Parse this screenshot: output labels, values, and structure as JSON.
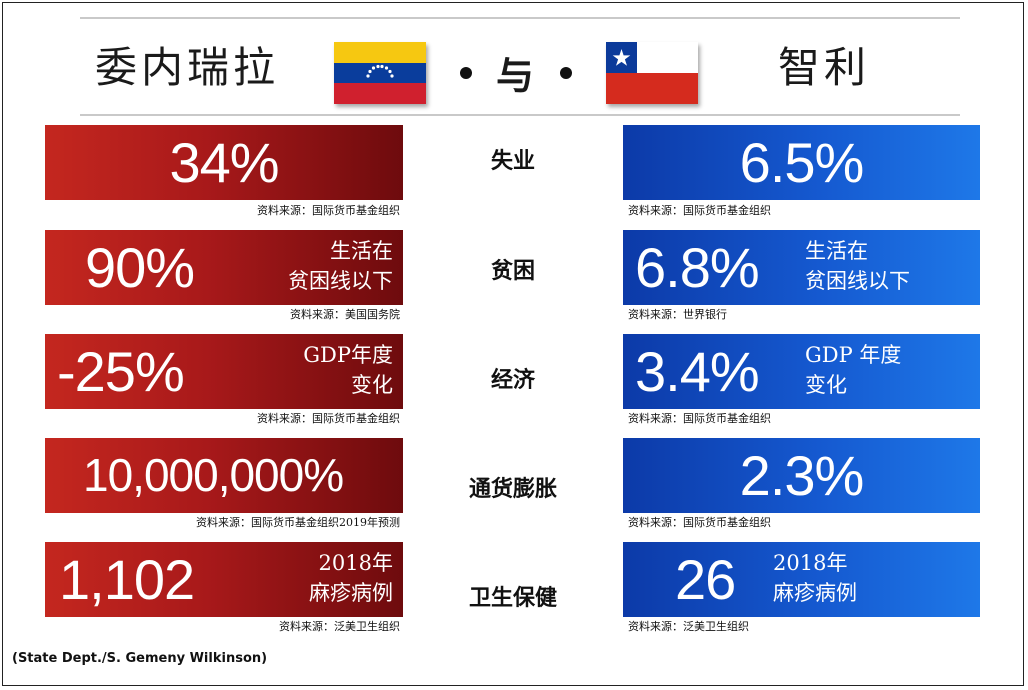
{
  "header": {
    "left_country": "委内瑞拉",
    "conjunction": "与",
    "right_country": "智利"
  },
  "rows": [
    {
      "category": "失业",
      "venezuela": {
        "value": "34%",
        "desc_line1": "",
        "desc_line2": "",
        "source": "资料来源：国际货币基金组织"
      },
      "chile": {
        "value": "6.5%",
        "desc_line1": "",
        "desc_line2": "",
        "source": "资料来源：国际货币基金组织"
      }
    },
    {
      "category": "贫困",
      "venezuela": {
        "value": "90%",
        "desc_line1": "生活在",
        "desc_line2": "贫困线以下",
        "source": "资料来源：美国国务院"
      },
      "chile": {
        "value": "6.8%",
        "desc_line1": "生活在",
        "desc_line2": "贫困线以下",
        "source": "资料来源：世界银行"
      }
    },
    {
      "category": "经济",
      "venezuela": {
        "value": "-25%",
        "desc_line1": "GDP年度",
        "desc_line2": "变化",
        "source": "资料来源：国际货币基金组织"
      },
      "chile": {
        "value": "3.4%",
        "desc_line1": "GDP 年度",
        "desc_line2": "变化",
        "source": "资料来源：国际货币基金组织"
      }
    },
    {
      "category": "通货膨胀",
      "venezuela": {
        "value": "10,000,000%",
        "desc_line1": "",
        "desc_line2": "",
        "source": "资料来源：国际货币基金组织2019年预测"
      },
      "chile": {
        "value": "2.3%",
        "desc_line1": "",
        "desc_line2": "",
        "source": "资料来源：国际货币基金组织"
      }
    },
    {
      "category": "卫生保健",
      "venezuela": {
        "value": "1,102",
        "desc_line1": "2018年",
        "desc_line2": "麻疹病例",
        "source": "资料来源：泛美卫生组织"
      },
      "chile": {
        "value": "26",
        "desc_line1": "2018年",
        "desc_line2": "麻疹病例",
        "source": "资料来源：泛美卫生组织"
      }
    }
  ],
  "credit": "(State Dept./S. Gemeny Wilkinson)",
  "colors": {
    "venezuela_panel": "#a8191a",
    "chile_panel": "#1559d0"
  },
  "icons": {
    "left_flag": "venezuela-flag-icon",
    "right_flag": "chile-flag-icon"
  }
}
